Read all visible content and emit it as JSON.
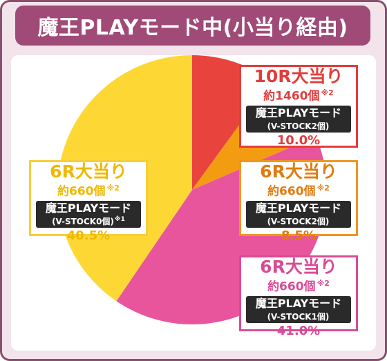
{
  "title": "魔王PLAYモード中(小当り経由)",
  "colors": {
    "frame_border": "#8a4e6f",
    "frame_bg": "#f3e4ec",
    "title_bg": "#a04a78",
    "red": "#e8443d",
    "orange": "#f39c12",
    "pink": "#e8559d",
    "yellow": "#fdd835"
  },
  "chart_data": {
    "type": "pie",
    "start": "12 o'clock, clockwise",
    "slices": [
      {
        "label": "10R大当り",
        "count": "約1460個",
        "note": "※2",
        "mode": "魔王PLAYモード",
        "stock": "(V-STOCK2個)",
        "stock_note": "",
        "pct_text": "10.0%",
        "value": 10.0,
        "color": "#e8443d"
      },
      {
        "label": "6R大当り",
        "count": "約660個",
        "note": "※2",
        "mode": "魔王PLAYモード",
        "stock": "(V-STOCK2個)",
        "stock_note": "",
        "pct_text": "8.5%",
        "value": 8.5,
        "color": "#f39c12"
      },
      {
        "label": "6R大当り",
        "count": "約660個",
        "note": "※2",
        "mode": "魔王PLAYモード",
        "stock": "(V-STOCK1個)",
        "stock_note": "",
        "pct_text": "41.0%",
        "value": 41.0,
        "color": "#e8559d"
      },
      {
        "label": "6R大当り",
        "count": "約660個",
        "note": "※2",
        "mode": "魔王PLAYモード",
        "stock": "(V-STOCK0個)",
        "stock_note": "※1",
        "pct_text": "40.5%",
        "value": 40.5,
        "color": "#fdd835"
      }
    ]
  }
}
